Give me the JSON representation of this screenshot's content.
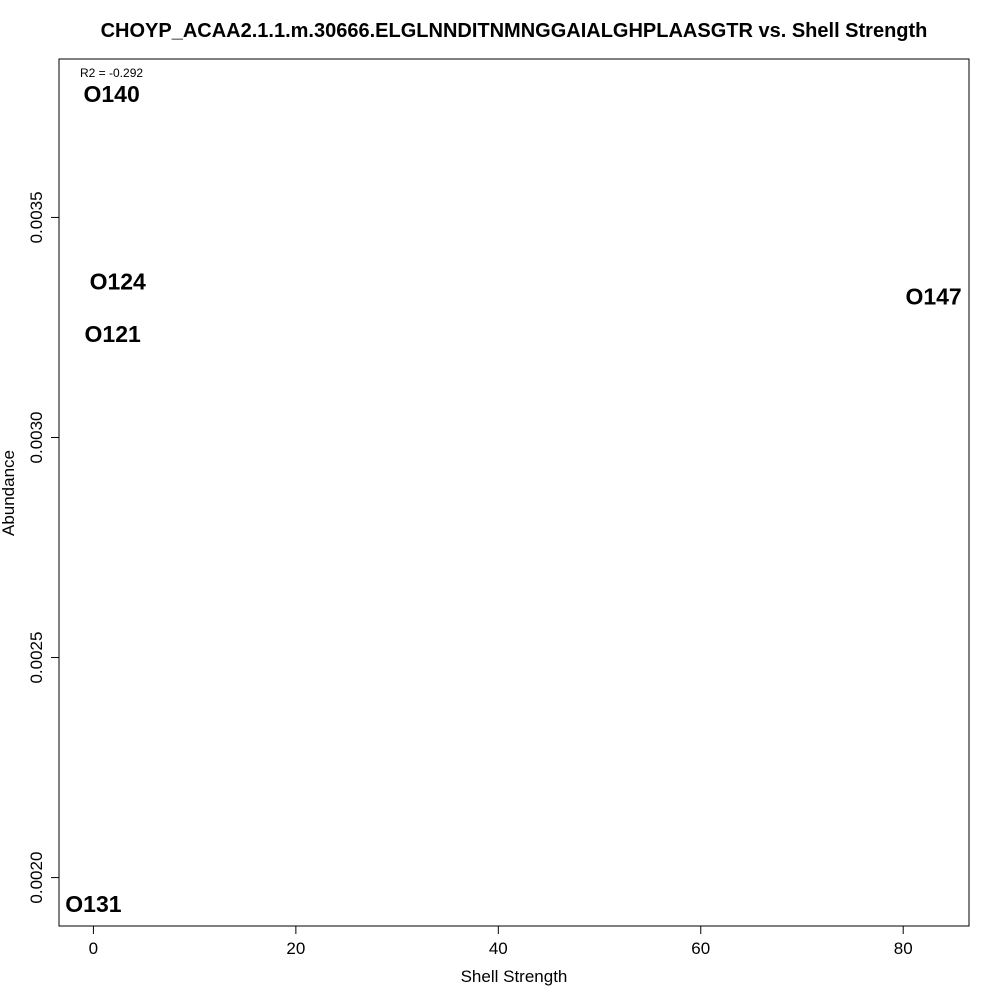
{
  "chart_data": {
    "type": "scatter",
    "title": "CHOYP_ACAA2.1.1.m.30666.ELGLNNDITNMNGGAIALGHPLAASGTR vs. Shell Strength",
    "xlabel": "Shell Strength",
    "ylabel": "Abundance",
    "annotation": "R2 = -0.292",
    "xlim": [
      -3.4,
      86.5
    ],
    "ylim": [
      0.00189,
      0.00386
    ],
    "x_ticks": [
      0,
      20,
      40,
      60,
      80
    ],
    "x_tick_labels": [
      "0",
      "20",
      "40",
      "60",
      "80"
    ],
    "y_ticks": [
      0.002,
      0.0025,
      0.003,
      0.0035
    ],
    "y_tick_labels": [
      "0.0020",
      "0.0025",
      "0.0030",
      "0.0035"
    ],
    "grid": false,
    "points": [
      {
        "label": "O140",
        "x": 1.8,
        "y": 0.00378
      },
      {
        "label": "O124",
        "x": 2.4,
        "y": 0.003355
      },
      {
        "label": "O121",
        "x": 1.9,
        "y": 0.003235
      },
      {
        "label": "O147",
        "x": 83.0,
        "y": 0.00332
      },
      {
        "label": "O131",
        "x": 0.0,
        "y": 0.00194
      }
    ]
  }
}
